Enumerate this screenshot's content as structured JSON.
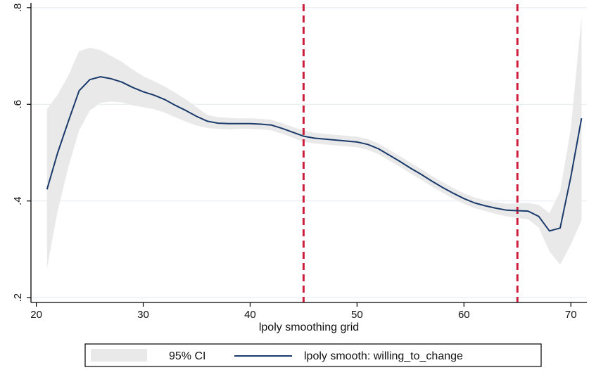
{
  "chart_data": {
    "type": "line",
    "title": "",
    "xlabel": "lpoly smoothing grid",
    "ylabel": "",
    "xlim": [
      19.5,
      71.5
    ],
    "ylim": [
      0.19,
      0.81
    ],
    "x_ticks": [
      20,
      30,
      40,
      50,
      60,
      70
    ],
    "x_tick_labels": [
      "20",
      "30",
      "40",
      "50",
      "60",
      "70"
    ],
    "y_ticks": [
      0.2,
      0.4,
      0.6,
      0.8
    ],
    "y_tick_labels": [
      ".2",
      ".4",
      ".6",
      ".8"
    ],
    "grid": true,
    "legend_position": "bottom",
    "vertical_lines": [
      45,
      65
    ],
    "colors": {
      "line": "#1a3a6b",
      "ci_band": "#e9e9e9",
      "vline": "#cc1f3f",
      "grid": "#e6eef2",
      "axis": "#000000"
    },
    "series": [
      {
        "name": "lpoly smooth: willing_to_change",
        "x": [
          21,
          22,
          23,
          24,
          25,
          26,
          27,
          28,
          29,
          30,
          31,
          32,
          33,
          34,
          35,
          36,
          37,
          38,
          39,
          40,
          41,
          42,
          43,
          44,
          45,
          46,
          47,
          48,
          49,
          50,
          51,
          52,
          53,
          54,
          55,
          56,
          57,
          58,
          59,
          60,
          61,
          62,
          63,
          64,
          65,
          66,
          67,
          68,
          69,
          70,
          71
        ],
        "y": [
          0.424,
          0.5,
          0.565,
          0.628,
          0.651,
          0.657,
          0.653,
          0.646,
          0.635,
          0.626,
          0.619,
          0.61,
          0.598,
          0.587,
          0.575,
          0.565,
          0.561,
          0.56,
          0.56,
          0.56,
          0.559,
          0.557,
          0.55,
          0.542,
          0.534,
          0.53,
          0.528,
          0.526,
          0.524,
          0.522,
          0.517,
          0.508,
          0.495,
          0.482,
          0.468,
          0.455,
          0.441,
          0.428,
          0.416,
          0.405,
          0.396,
          0.39,
          0.385,
          0.381,
          0.38,
          0.379,
          0.368,
          0.338,
          0.344,
          0.45,
          0.571
        ]
      },
      {
        "name": "95% CI",
        "x": [
          21,
          22,
          23,
          24,
          25,
          26,
          27,
          28,
          29,
          30,
          31,
          32,
          33,
          34,
          35,
          36,
          37,
          38,
          39,
          40,
          41,
          42,
          43,
          44,
          45,
          46,
          47,
          48,
          49,
          50,
          51,
          52,
          53,
          54,
          55,
          56,
          57,
          58,
          59,
          60,
          61,
          62,
          63,
          64,
          65,
          66,
          67,
          68,
          69,
          70,
          71
        ],
        "upper": [
          0.59,
          0.62,
          0.66,
          0.71,
          0.717,
          0.712,
          0.7,
          0.688,
          0.672,
          0.658,
          0.648,
          0.637,
          0.624,
          0.61,
          0.594,
          0.578,
          0.573,
          0.572,
          0.571,
          0.571,
          0.57,
          0.568,
          0.561,
          0.553,
          0.546,
          0.541,
          0.539,
          0.537,
          0.535,
          0.533,
          0.528,
          0.519,
          0.506,
          0.493,
          0.479,
          0.466,
          0.452,
          0.439,
          0.427,
          0.416,
          0.407,
          0.401,
          0.397,
          0.394,
          0.395,
          0.396,
          0.392,
          0.375,
          0.42,
          0.55,
          0.782
        ],
        "lower": [
          0.26,
          0.38,
          0.47,
          0.546,
          0.587,
          0.603,
          0.606,
          0.604,
          0.598,
          0.594,
          0.59,
          0.583,
          0.573,
          0.564,
          0.556,
          0.551,
          0.549,
          0.548,
          0.549,
          0.549,
          0.548,
          0.546,
          0.539,
          0.531,
          0.522,
          0.519,
          0.517,
          0.515,
          0.513,
          0.511,
          0.506,
          0.497,
          0.484,
          0.471,
          0.457,
          0.444,
          0.43,
          0.417,
          0.405,
          0.394,
          0.385,
          0.379,
          0.373,
          0.368,
          0.365,
          0.362,
          0.345,
          0.296,
          0.268,
          0.31,
          0.36
        ]
      }
    ],
    "legend": [
      {
        "label": "95% CI",
        "kind": "band"
      },
      {
        "label": "lpoly smooth: willing_to_change",
        "kind": "line"
      }
    ]
  }
}
